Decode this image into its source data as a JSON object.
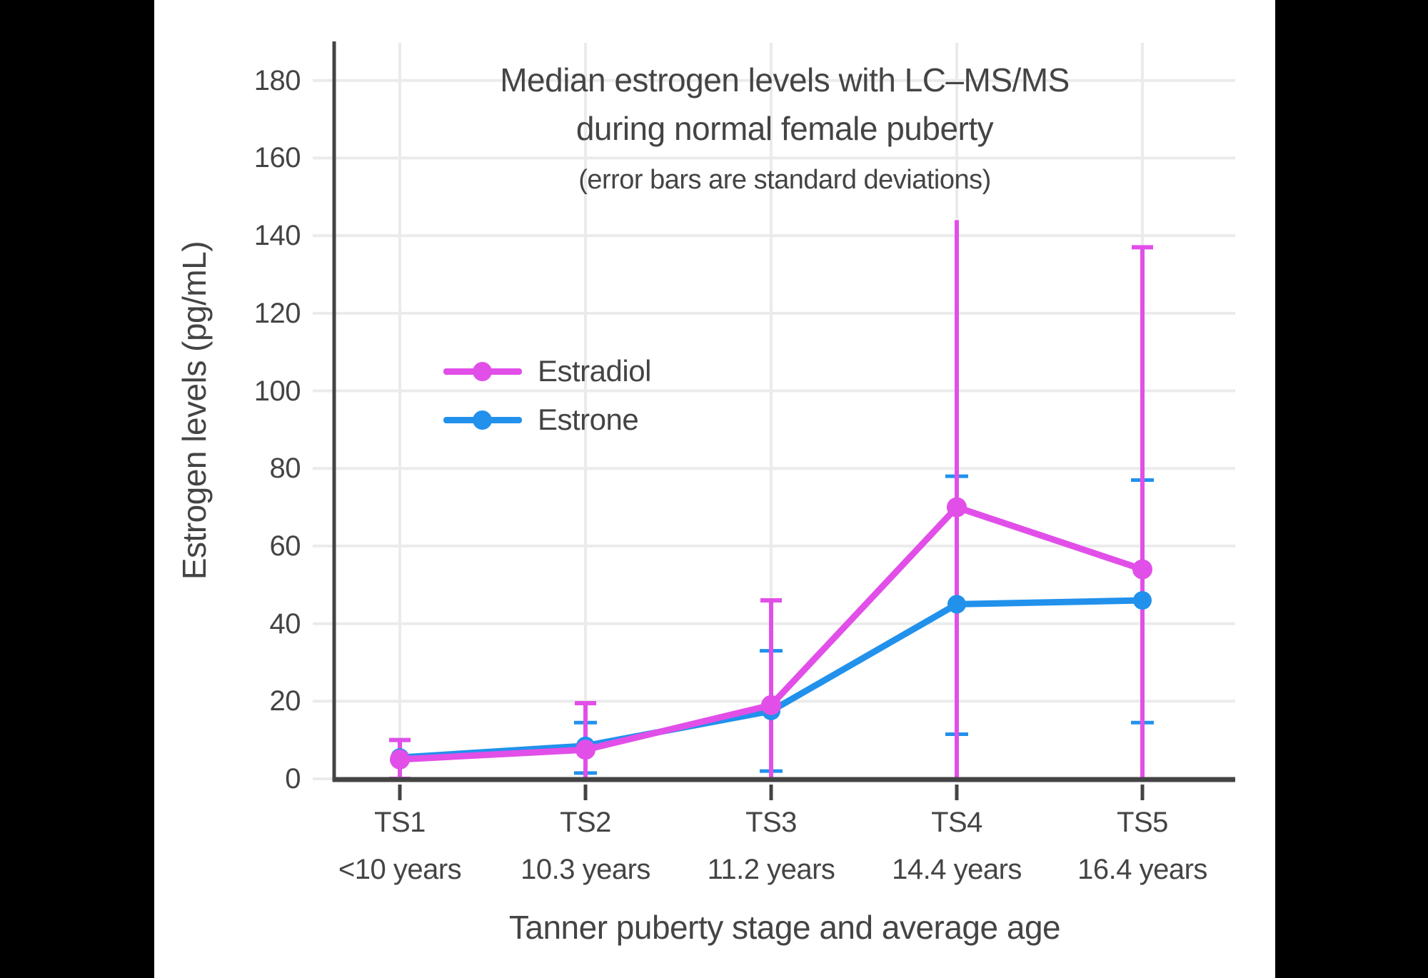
{
  "page": {
    "side_bar_color": "#000000",
    "content_background": "#ffffff",
    "text_color": "#444444",
    "gridline_color": "#ebebeb",
    "axis_color": "#444444"
  },
  "chart_data": {
    "type": "line",
    "title_lines": [
      "Median estrogen levels with LC–MS/MS",
      "during normal female puberty"
    ],
    "subtitle": "(error bars are standard deviations)",
    "xlabel": "Tanner puberty stage and average age",
    "ylabel": "Estrogen levels (pg/mL)",
    "categories": [
      "TS1",
      "TS2",
      "TS3",
      "TS4",
      "TS5"
    ],
    "category_sublabels": [
      "<10 years",
      "10.3 years",
      "11.2 years",
      "14.4 years",
      "16.4 years"
    ],
    "yticks": [
      0,
      20,
      40,
      60,
      80,
      100,
      120,
      140,
      160,
      180
    ],
    "ylim": [
      0,
      190
    ],
    "grid": true,
    "legend_position": "inside-left-middle",
    "series": [
      {
        "name": "Estradiol",
        "color": "#E14FE8",
        "values": [
          5,
          7.5,
          19,
          70,
          54
        ],
        "error_upper_tip": [
          10,
          19.5,
          46,
          144,
          137
        ],
        "error_lower_tip_displayed": [
          0,
          0,
          0,
          0,
          0
        ],
        "top_cap": [
          true,
          true,
          true,
          false,
          true
        ],
        "bottom_cap": [
          true,
          false,
          false,
          false,
          false
        ],
        "note": "lower error ends are clipped at the 0 axis"
      },
      {
        "name": "Estrone",
        "color": "#2191EC",
        "values": [
          5.5,
          8.5,
          17.5,
          45,
          46
        ],
        "error_upper_tip": [
          null,
          14.5,
          33,
          78,
          77
        ],
        "error_lower_tip_displayed": [
          null,
          1.5,
          2,
          11.5,
          14.5
        ],
        "top_cap": [
          false,
          true,
          true,
          true,
          true
        ],
        "bottom_cap": [
          false,
          true,
          true,
          true,
          true
        ]
      }
    ]
  }
}
